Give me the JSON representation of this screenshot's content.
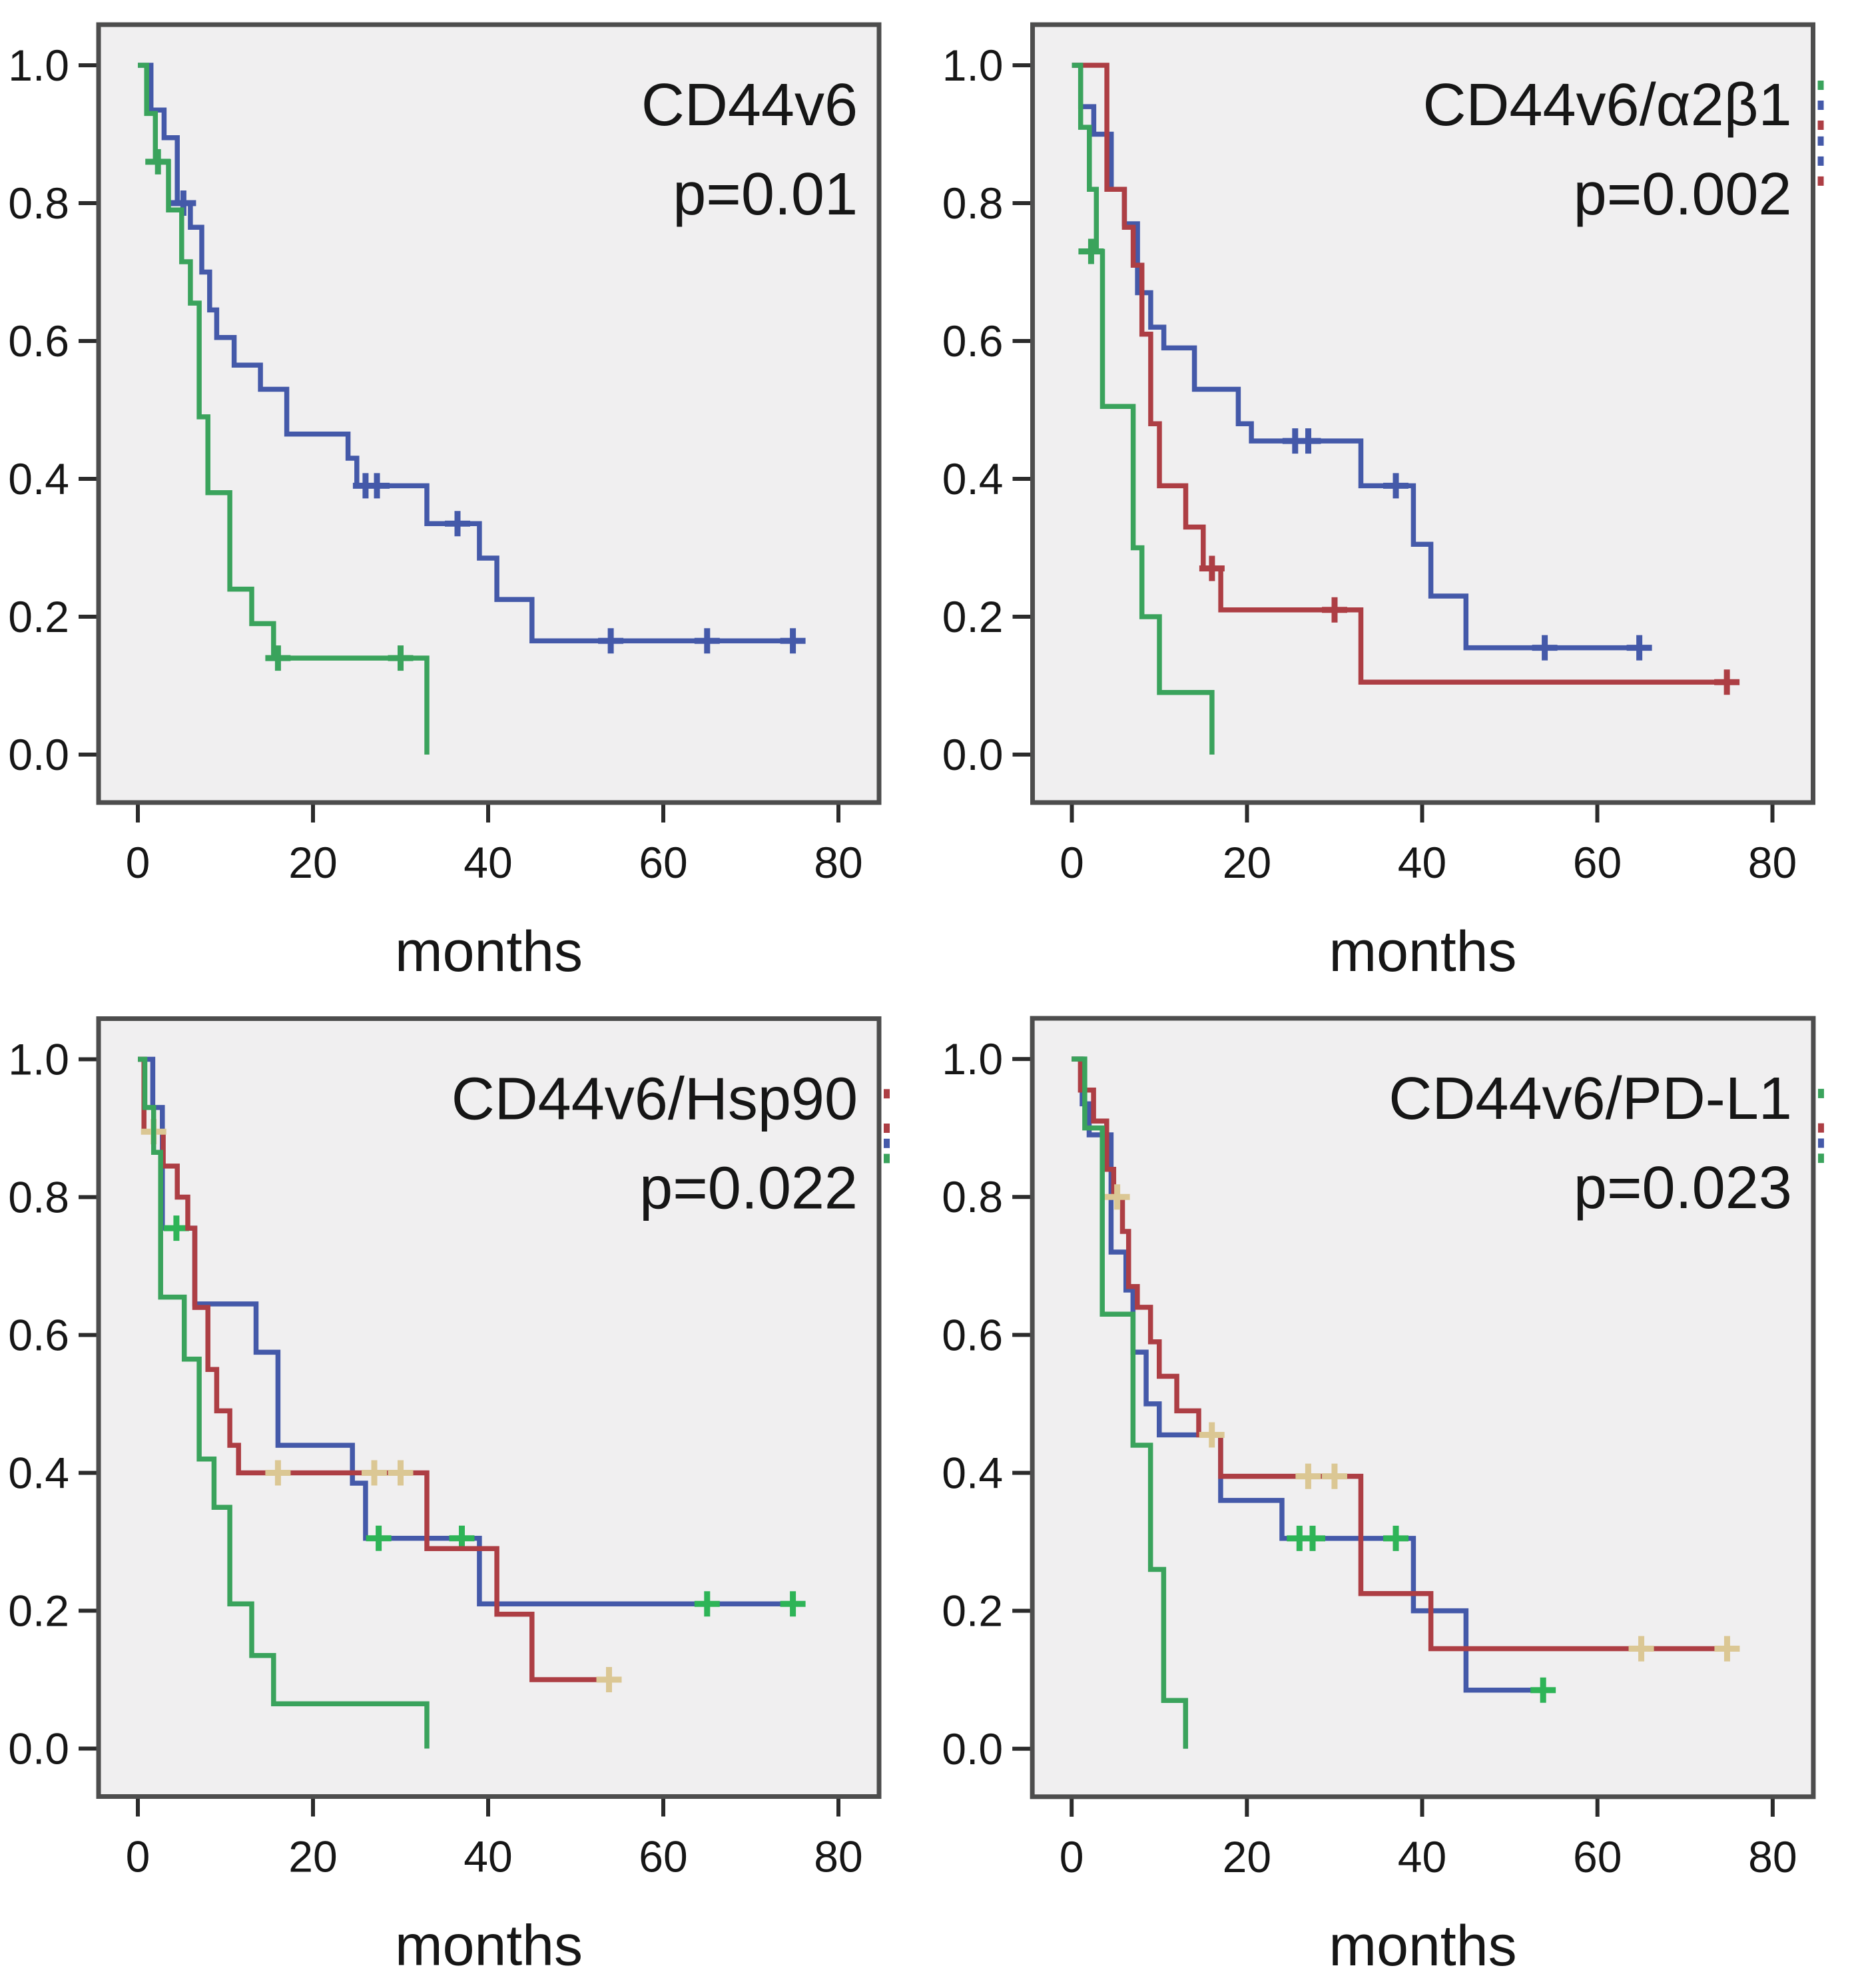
{
  "figure": {
    "type": "kaplan-meier-survival-grid",
    "x_axis_label": "months",
    "x_ticks": [
      0,
      20,
      40,
      60,
      80
    ],
    "y_ticks": [
      "0.0",
      "0.2",
      "0.4",
      "0.6",
      "0.8",
      "1.0"
    ],
    "colors": {
      "blue": "#4459a9",
      "red": "#ad3e44",
      "green": "#3aa35c",
      "green_censor": "#2eb457",
      "tan_censor": "#dbc794",
      "plot_bg": "#f0eff0",
      "border": "#4d4d4d",
      "tick": "#2b2b2b",
      "text": "#161616"
    }
  },
  "chart_data": [
    {
      "type": "line",
      "subtype": "kaplan-meier-step",
      "title": "CD44v6",
      "p_label": "p=0.01",
      "xlabel": "months",
      "xlim": [
        0,
        84
      ],
      "ylim": [
        0,
        1
      ],
      "xticks": [
        0,
        20,
        40,
        60,
        80
      ],
      "yticks": [
        "0.0",
        "0.2",
        "0.4",
        "0.6",
        "0.8",
        "1.0"
      ],
      "grid": false,
      "legend": "none",
      "series": [
        {
          "name": "blue-group",
          "color_key": "blue",
          "censor_color_key": "blue",
          "steps": [
            [
              0,
              1.0
            ],
            [
              1.5,
              0.935
            ],
            [
              3,
              0.895
            ],
            [
              4.5,
              0.8
            ],
            [
              6,
              0.765
            ],
            [
              7.3,
              0.7
            ],
            [
              8.2,
              0.645
            ],
            [
              9,
              0.605
            ],
            [
              11,
              0.565
            ],
            [
              14,
              0.53
            ],
            [
              17,
              0.465
            ],
            [
              24,
              0.43
            ],
            [
              25,
              0.39
            ],
            [
              33,
              0.335
            ],
            [
              39,
              0.285
            ],
            [
              41,
              0.225
            ],
            [
              45,
              0.165
            ]
          ],
          "end": 75,
          "censors": [
            [
              5.2,
              0.8
            ],
            [
              26,
              0.39
            ],
            [
              27.3,
              0.39
            ],
            [
              36.5,
              0.335
            ],
            [
              54,
              0.165
            ],
            [
              65,
              0.165
            ],
            [
              74.8,
              0.165
            ]
          ]
        },
        {
          "name": "green-group",
          "color_key": "green",
          "censor_color_key": "green",
          "steps": [
            [
              0,
              1.0
            ],
            [
              1,
              0.93
            ],
            [
              2,
              0.86
            ],
            [
              3.5,
              0.79
            ],
            [
              5,
              0.715
            ],
            [
              6,
              0.655
            ],
            [
              7,
              0.49
            ],
            [
              8,
              0.38
            ],
            [
              10.5,
              0.24
            ],
            [
              13,
              0.19
            ],
            [
              15.5,
              0.14
            ],
            [
              33,
              0.0
            ]
          ],
          "end": 33,
          "censors": [
            [
              2.3,
              0.86
            ],
            [
              16,
              0.14
            ],
            [
              30,
              0.14
            ]
          ]
        }
      ],
      "edge_marks": []
    },
    {
      "type": "line",
      "subtype": "kaplan-meier-step",
      "title": "CD44v6/α2β1",
      "p_label": "p=0.002",
      "xlabel": "months",
      "xlim": [
        0,
        84
      ],
      "ylim": [
        0,
        1
      ],
      "xticks": [
        0,
        20,
        40,
        60,
        80
      ],
      "yticks": [
        "0.0",
        "0.2",
        "0.4",
        "0.6",
        "0.8",
        "1.0"
      ],
      "grid": false,
      "legend": "none",
      "series": [
        {
          "name": "blue-group",
          "color_key": "blue",
          "censor_color_key": "blue",
          "steps": [
            [
              0,
              1.0
            ],
            [
              1,
              0.94
            ],
            [
              2.5,
              0.9
            ],
            [
              4.5,
              0.82
            ],
            [
              6,
              0.77
            ],
            [
              7.5,
              0.67
            ],
            [
              9,
              0.62
            ],
            [
              10.5,
              0.59
            ],
            [
              14,
              0.53
            ],
            [
              19,
              0.48
            ],
            [
              20.5,
              0.455
            ],
            [
              33,
              0.39
            ],
            [
              39,
              0.305
            ],
            [
              41,
              0.23
            ],
            [
              45,
              0.155
            ]
          ],
          "end": 65,
          "censors": [
            [
              25.5,
              0.455
            ],
            [
              27,
              0.455
            ],
            [
              37,
              0.39
            ],
            [
              54,
              0.155
            ],
            [
              64.8,
              0.155
            ]
          ]
        },
        {
          "name": "red-group",
          "color_key": "red",
          "censor_color_key": "red",
          "steps": [
            [
              0,
              1.0
            ],
            [
              4,
              0.82
            ],
            [
              6,
              0.765
            ],
            [
              7,
              0.71
            ],
            [
              8,
              0.61
            ],
            [
              9,
              0.48
            ],
            [
              10,
              0.39
            ],
            [
              13,
              0.33
            ],
            [
              15,
              0.27
            ],
            [
              17,
              0.21
            ],
            [
              33,
              0.105
            ]
          ],
          "end": 75,
          "censors": [
            [
              16,
              0.27
            ],
            [
              30,
              0.21
            ],
            [
              74.8,
              0.105
            ]
          ]
        },
        {
          "name": "green-group",
          "color_key": "green",
          "censor_color_key": "green",
          "steps": [
            [
              0,
              1.0
            ],
            [
              1,
              0.91
            ],
            [
              2,
              0.82
            ],
            [
              2.8,
              0.73
            ],
            [
              3.5,
              0.505
            ],
            [
              7,
              0.3
            ],
            [
              8,
              0.2
            ],
            [
              10,
              0.09
            ],
            [
              16,
              0.0
            ]
          ],
          "end": 16,
          "censors": [
            [
              2.2,
              0.73
            ]
          ]
        }
      ],
      "edge_marks": [
        {
          "s": 0.971,
          "color_key": "green"
        },
        {
          "s": 0.942,
          "color_key": "blue"
        },
        {
          "s": 0.913,
          "color_key": "red"
        },
        {
          "s": 0.89,
          "color_key": "blue"
        },
        {
          "s": 0.861,
          "color_key": "blue"
        },
        {
          "s": 0.832,
          "color_key": "red"
        }
      ]
    },
    {
      "type": "line",
      "subtype": "kaplan-meier-step",
      "title": "CD44v6/Hsp90",
      "p_label": "p=0.022",
      "xlabel": "months",
      "xlim": [
        0,
        84
      ],
      "ylim": [
        0,
        1
      ],
      "xticks": [
        0,
        20,
        40,
        60,
        80
      ],
      "yticks": [
        "0.0",
        "0.2",
        "0.4",
        "0.6",
        "0.8",
        "1.0"
      ],
      "grid": false,
      "legend": "none",
      "series": [
        {
          "name": "blue-group",
          "color_key": "blue",
          "censor_color_key": "green_censor",
          "steps": [
            [
              0,
              1.0
            ],
            [
              1.7,
              0.93
            ],
            [
              2.8,
              0.755
            ],
            [
              6.5,
              0.645
            ],
            [
              13.5,
              0.575
            ],
            [
              16,
              0.44
            ],
            [
              24.5,
              0.385
            ],
            [
              26,
              0.305
            ],
            [
              39,
              0.21
            ]
          ],
          "end": 75,
          "censors": [
            [
              4.4,
              0.755
            ],
            [
              27.5,
              0.305
            ],
            [
              37,
              0.305
            ],
            [
              65,
              0.21
            ],
            [
              74.8,
              0.21
            ]
          ]
        },
        {
          "name": "red-group",
          "color_key": "red",
          "censor_color_key": "tan_censor",
          "steps": [
            [
              0,
              1.0
            ],
            [
              0.7,
              0.895
            ],
            [
              2.9,
              0.845
            ],
            [
              4.5,
              0.8
            ],
            [
              5.7,
              0.755
            ],
            [
              6.5,
              0.64
            ],
            [
              8,
              0.55
            ],
            [
              9,
              0.49
            ],
            [
              10.5,
              0.44
            ],
            [
              11.5,
              0.4
            ],
            [
              33,
              0.29
            ],
            [
              41,
              0.195
            ],
            [
              45,
              0.1
            ]
          ],
          "end": 54,
          "censors": [
            [
              1.8,
              0.895
            ],
            [
              16,
              0.4
            ],
            [
              27,
              0.4
            ],
            [
              30,
              0.4
            ],
            [
              53.8,
              0.1
            ]
          ]
        },
        {
          "name": "green-group",
          "color_key": "green",
          "censor_color_key": "green",
          "steps": [
            [
              0,
              1.0
            ],
            [
              0.8,
              0.93
            ],
            [
              1.8,
              0.865
            ],
            [
              2.6,
              0.655
            ],
            [
              5.3,
              0.565
            ],
            [
              7,
              0.42
            ],
            [
              8.7,
              0.35
            ],
            [
              10.5,
              0.21
            ],
            [
              13,
              0.135
            ],
            [
              15.5,
              0.065
            ],
            [
              33,
              0.0
            ]
          ],
          "end": 33,
          "censors": []
        }
      ],
      "edge_marks": [
        {
          "s": 0.95,
          "color_key": "red"
        },
        {
          "s": 0.9,
          "color_key": "red"
        },
        {
          "s": 0.878,
          "color_key": "blue"
        },
        {
          "s": 0.856,
          "color_key": "green"
        }
      ]
    },
    {
      "type": "line",
      "subtype": "kaplan-meier-step",
      "title": "CD44v6/PD-L1",
      "p_label": "p=0.023",
      "xlabel": "months",
      "xlim": [
        0,
        84
      ],
      "ylim": [
        0,
        1
      ],
      "xticks": [
        0,
        20,
        40,
        60,
        80
      ],
      "yticks": [
        "0.0",
        "0.2",
        "0.4",
        "0.6",
        "0.8",
        "1.0"
      ],
      "grid": false,
      "legend": "none",
      "series": [
        {
          "name": "blue-group",
          "color_key": "blue",
          "censor_color_key": "green_censor",
          "steps": [
            [
              0,
              1.0
            ],
            [
              1.2,
              0.935
            ],
            [
              2,
              0.89
            ],
            [
              4.5,
              0.72
            ],
            [
              6.2,
              0.665
            ],
            [
              7,
              0.575
            ],
            [
              8.5,
              0.5
            ],
            [
              10,
              0.455
            ],
            [
              17,
              0.36
            ],
            [
              24,
              0.305
            ],
            [
              39,
              0.2
            ],
            [
              45,
              0.085
            ]
          ],
          "end": 54,
          "censors": [
            [
              26,
              0.305
            ],
            [
              27.5,
              0.305
            ],
            [
              37,
              0.305
            ],
            [
              53.8,
              0.085
            ]
          ]
        },
        {
          "name": "red-group",
          "color_key": "red",
          "censor_color_key": "tan_censor",
          "steps": [
            [
              0,
              1.0
            ],
            [
              1,
              0.955
            ],
            [
              2.5,
              0.91
            ],
            [
              4,
              0.84
            ],
            [
              4.8,
              0.8
            ],
            [
              5.8,
              0.75
            ],
            [
              6.5,
              0.67
            ],
            [
              7.5,
              0.64
            ],
            [
              9,
              0.59
            ],
            [
              10,
              0.54
            ],
            [
              12,
              0.49
            ],
            [
              14.5,
              0.455
            ],
            [
              17,
              0.395
            ],
            [
              33,
              0.225
            ],
            [
              41,
              0.145
            ]
          ],
          "end": 75,
          "censors": [
            [
              5.2,
              0.8
            ],
            [
              16,
              0.455
            ],
            [
              27,
              0.395
            ],
            [
              30,
              0.395
            ],
            [
              65,
              0.145
            ],
            [
              74.8,
              0.145
            ]
          ]
        },
        {
          "name": "green-group",
          "color_key": "green",
          "censor_color_key": "green",
          "steps": [
            [
              0,
              1.0
            ],
            [
              1.5,
              0.9
            ],
            [
              3.5,
              0.63
            ],
            [
              7,
              0.44
            ],
            [
              9,
              0.26
            ],
            [
              10.5,
              0.07
            ],
            [
              13,
              0.0
            ]
          ],
          "end": 13,
          "censors": []
        }
      ],
      "edge_marks": [
        {
          "s": 0.95,
          "color_key": "green"
        },
        {
          "s": 0.9,
          "color_key": "red"
        },
        {
          "s": 0.878,
          "color_key": "blue"
        },
        {
          "s": 0.856,
          "color_key": "green"
        }
      ]
    }
  ]
}
